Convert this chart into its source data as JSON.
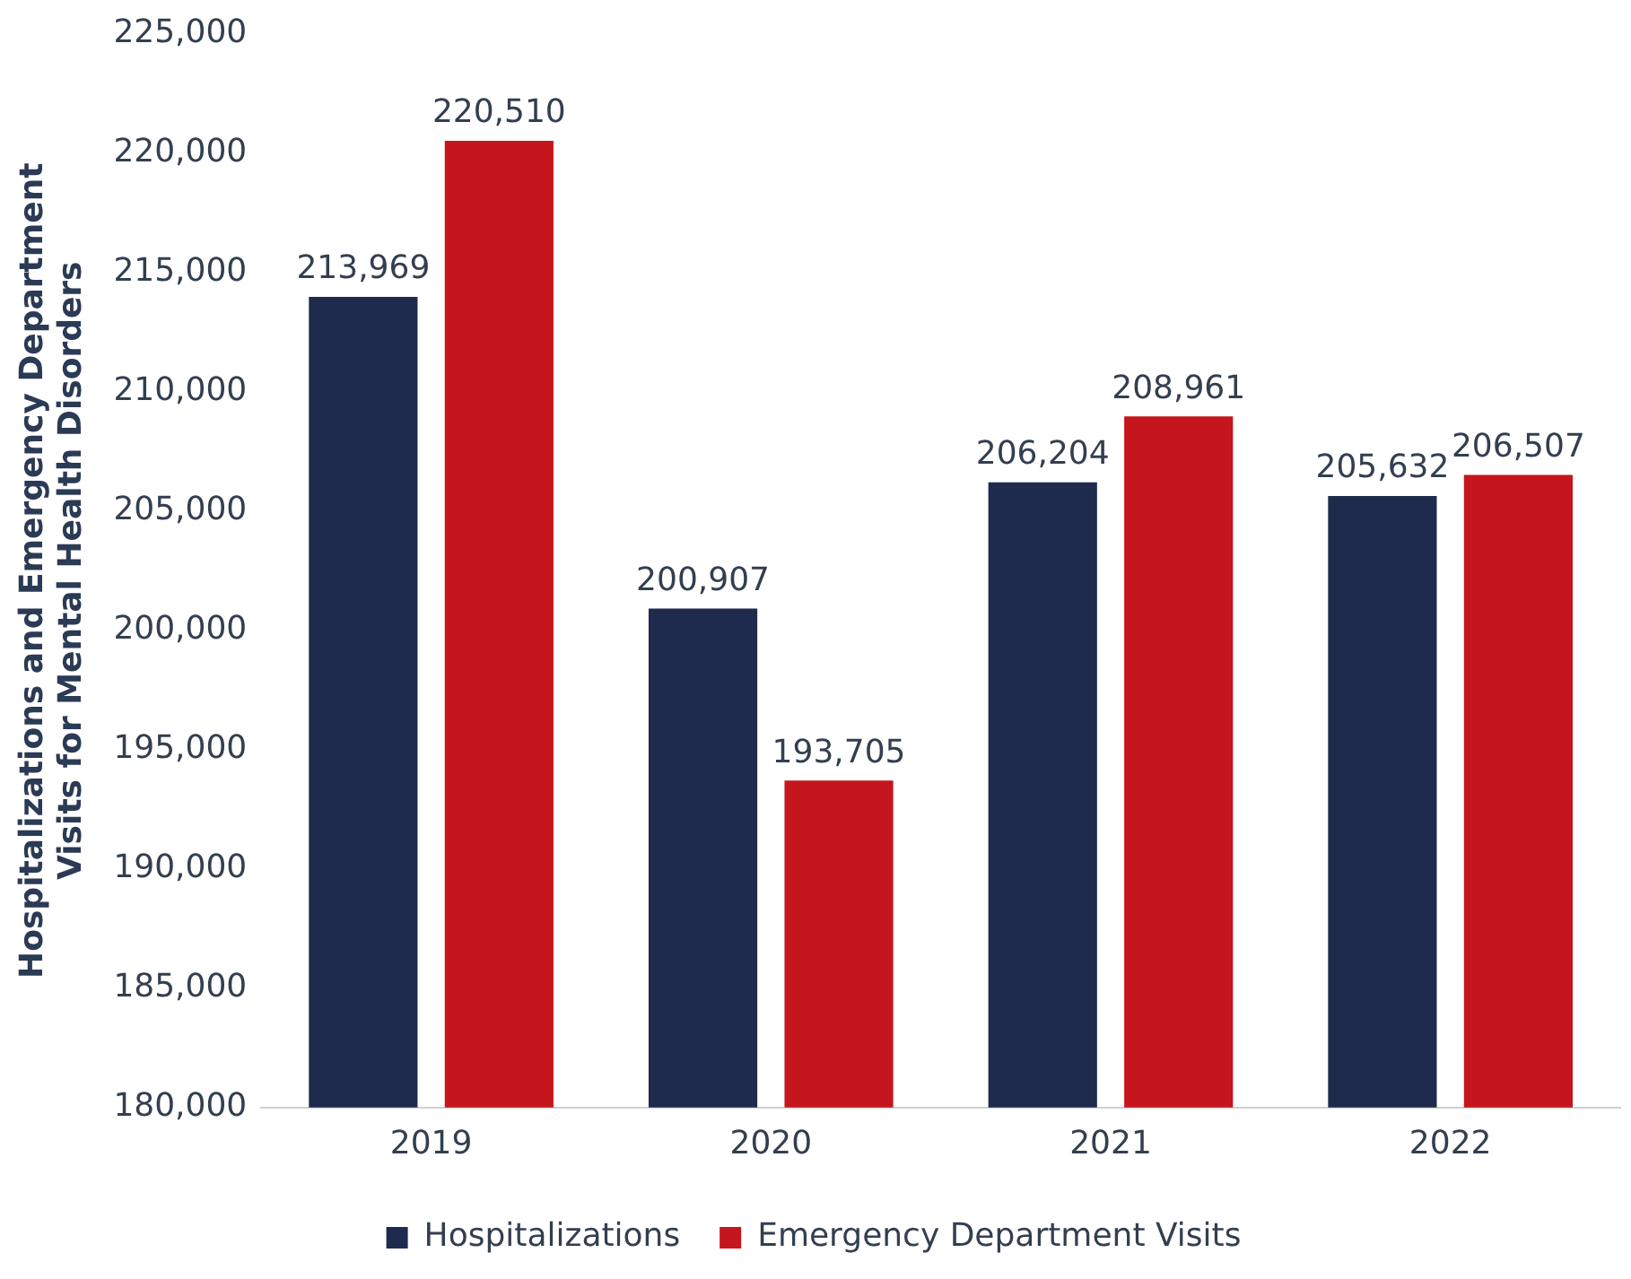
{
  "chart_data": {
    "type": "bar",
    "ylabel": "Hospitalizations and Emergency Department Visits for Mental Health Disorders",
    "categories": [
      "2019",
      "2020",
      "2021",
      "2022"
    ],
    "series": [
      {
        "name": "Hospitalizations",
        "color": "#1f2b4d",
        "values": [
          213969,
          200907,
          206204,
          205632
        ],
        "value_labels": [
          "213,969",
          "200,907",
          "206,204",
          "205,632"
        ]
      },
      {
        "name": "Emergency Department Visits",
        "color": "#c4161c",
        "values": [
          220510,
          193705,
          208961,
          206507
        ],
        "value_labels": [
          "220,510",
          "193,705",
          "208,961",
          "206,507"
        ]
      }
    ],
    "ylim": [
      180000,
      225000
    ],
    "yticks": [
      {
        "value": 180000,
        "label": "180,000"
      },
      {
        "value": 185000,
        "label": "185,000"
      },
      {
        "value": 190000,
        "label": "190,000"
      },
      {
        "value": 195000,
        "label": "195,000"
      },
      {
        "value": 200000,
        "label": "200,000"
      },
      {
        "value": 205000,
        "label": "205,000"
      },
      {
        "value": 210000,
        "label": "210,000"
      },
      {
        "value": 215000,
        "label": "215,000"
      },
      {
        "value": 220000,
        "label": "220,000"
      },
      {
        "value": 225000,
        "label": "225,000"
      }
    ],
    "grid": false,
    "legend": "bottom"
  }
}
